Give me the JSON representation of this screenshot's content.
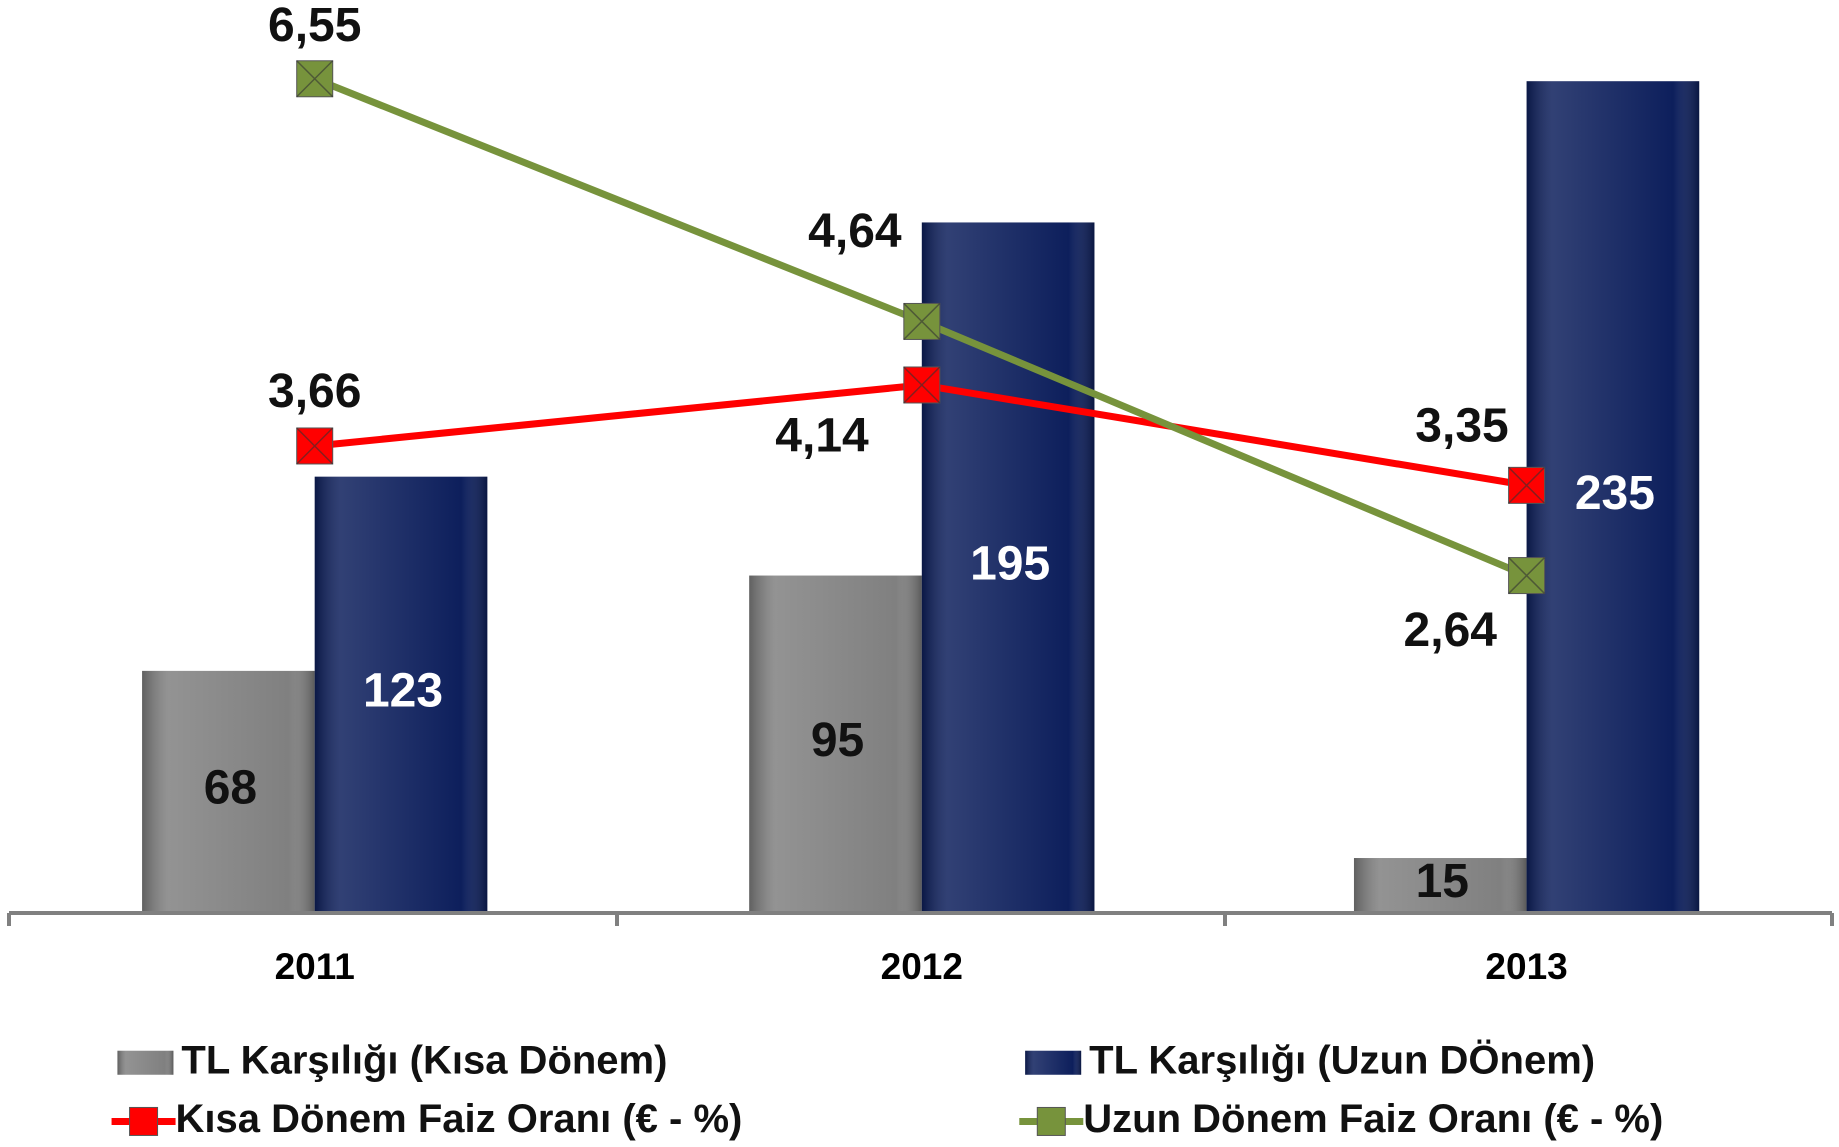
{
  "chart_data": {
    "type": "bar",
    "categories": [
      "2011",
      "2012",
      "2013"
    ],
    "series": [
      {
        "name": "TL Karşılığı (Kısa Dönem)",
        "type": "bar",
        "color": "#808080",
        "values": [
          68,
          95,
          15
        ]
      },
      {
        "name": "TL Karşılığı (Uzun DÖnem)",
        "type": "bar",
        "color": "#0d1f5c",
        "values": [
          123,
          195,
          235
        ]
      },
      {
        "name": "Kısa Dönem Faiz Oranı (€ - %)",
        "type": "line",
        "axis": "y2",
        "color": "#ff0000",
        "values": [
          3.66,
          4.14,
          3.35
        ],
        "value_labels": [
          "3,66",
          "4,14",
          "3,35"
        ]
      },
      {
        "name": "Uzun Dönem Faiz Oranı (€ - %)",
        "type": "line",
        "axis": "y2",
        "color": "#77933c",
        "values": [
          6.55,
          4.64,
          2.64
        ],
        "value_labels": [
          "6,55",
          "4,64",
          "2,64"
        ]
      }
    ],
    "ylim": [
      0,
      258
    ],
    "y2lim": [
      0,
      7.17
    ]
  }
}
